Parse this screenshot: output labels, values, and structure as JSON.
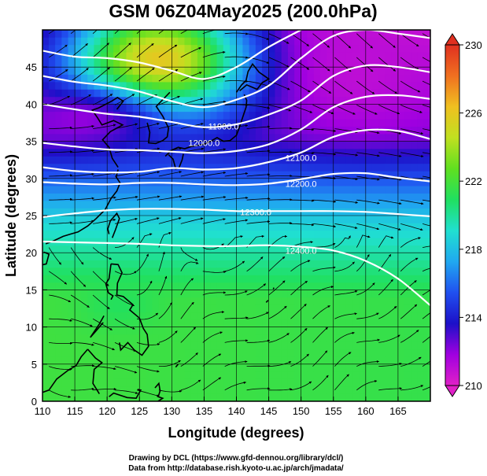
{
  "title": "GSM 06Z04May2025 (200.0hPa)",
  "xlabel": "Longitude (degrees)",
  "ylabel": "Latitude  (degrees)",
  "credits": {
    "line1": "Drawing by DCL (https://www.gfd-dennou.org/library/dcl/)",
    "line2": "Data from http://database.rish.kyoto-u.ac.jp/arch/jmadata/"
  },
  "colors": {
    "contour": "#ffffff",
    "coast": "#000000",
    "vector": "#000000",
    "frame": "#000000"
  },
  "colorbar": {
    "min": 210,
    "max": 230,
    "tick_labels": [
      "230",
      "226",
      "222",
      "218",
      "214",
      "210"
    ],
    "stops": [
      "#e020c8",
      "#a000e0",
      "#1c10c8",
      "#2050f0",
      "#20a8f0",
      "#20e0d0",
      "#20e060",
      "#60e020",
      "#c0e020",
      "#f0c020",
      "#f07020",
      "#e03020"
    ]
  },
  "chart_data": {
    "type": "heatmap",
    "xlim": [
      110,
      170
    ],
    "ylim": [
      0,
      50
    ],
    "x_ticks": [
      "110",
      "115",
      "120",
      "125",
      "130",
      "135",
      "140",
      "145",
      "150",
      "155",
      "160",
      "165"
    ],
    "y_ticks": [
      "0",
      "5",
      "10",
      "15",
      "20",
      "25",
      "30",
      "35",
      "40",
      "45"
    ],
    "grid": true,
    "field_description": "shaded temperature (K) with geopotential height contours and wind streamlines",
    "contours": [
      {
        "label": "11900.0",
        "value": 11900,
        "points": [
          [
            110,
            40
          ],
          [
            115,
            39.3
          ],
          [
            120,
            38.7
          ],
          [
            125,
            38.3
          ],
          [
            130,
            37.6
          ],
          [
            135,
            36.9
          ],
          [
            140,
            37.3
          ],
          [
            145,
            38.6
          ],
          [
            150,
            40.5
          ],
          [
            155,
            43.8
          ],
          [
            160,
            45.2
          ],
          [
            165,
            45.0
          ],
          [
            170,
            44.3
          ]
        ]
      },
      {
        "label": "12000.0",
        "value": 12000,
        "points": [
          [
            110,
            34.8
          ],
          [
            115,
            34.3
          ],
          [
            120,
            33.9
          ],
          [
            125,
            33.8
          ],
          [
            130,
            33.6
          ],
          [
            135,
            33.4
          ],
          [
            140,
            33.7
          ],
          [
            145,
            34.6
          ],
          [
            150,
            36.6
          ],
          [
            155,
            39.6
          ],
          [
            160,
            41.0
          ],
          [
            165,
            41.2
          ],
          [
            170,
            40.7
          ]
        ]
      },
      {
        "label": "12100.0",
        "value": 12100,
        "points": [
          [
            110,
            31.5
          ],
          [
            115,
            31.0
          ],
          [
            120,
            30.8
          ],
          [
            125,
            30.9
          ],
          [
            130,
            31.4
          ],
          [
            135,
            31.2
          ],
          [
            140,
            31.4
          ],
          [
            145,
            32.2
          ],
          [
            150,
            33.5
          ],
          [
            155,
            35.6
          ],
          [
            160,
            36.5
          ],
          [
            165,
            36.4
          ],
          [
            170,
            35.3
          ]
        ]
      },
      {
        "label": "12200.0",
        "value": 12200,
        "points": [
          [
            110,
            29.5
          ],
          [
            115,
            29.3
          ],
          [
            120,
            29.2
          ],
          [
            125,
            29.4
          ],
          [
            130,
            29.4
          ],
          [
            135,
            29.2
          ],
          [
            140,
            29.1
          ],
          [
            145,
            29.3
          ],
          [
            150,
            29.9
          ],
          [
            155,
            30.6
          ],
          [
            160,
            30.7
          ],
          [
            165,
            30.1
          ],
          [
            170,
            29.6
          ]
        ]
      },
      {
        "label": "12300.0",
        "value": 12300,
        "points": [
          [
            110,
            24.8
          ],
          [
            115,
            25.3
          ],
          [
            120,
            25.7
          ],
          [
            125,
            25.9
          ],
          [
            130,
            25.9
          ],
          [
            135,
            25.8
          ],
          [
            140,
            25.6
          ],
          [
            145,
            25.6
          ],
          [
            150,
            25.6
          ],
          [
            155,
            25.6
          ],
          [
            160,
            25.5
          ],
          [
            165,
            25.2
          ],
          [
            170,
            24.9
          ]
        ]
      },
      {
        "label": "12400.0",
        "value": 12400,
        "points": [
          [
            110,
            21.5
          ],
          [
            115,
            21.4
          ],
          [
            120,
            21.3
          ],
          [
            125,
            21.2
          ],
          [
            130,
            21.0
          ],
          [
            135,
            20.9
          ],
          [
            140,
            20.9
          ],
          [
            145,
            21.0
          ],
          [
            150,
            20.8
          ],
          [
            155,
            20.3
          ],
          [
            160,
            18.9
          ],
          [
            165,
            16.5
          ],
          [
            170,
            12.9
          ]
        ]
      },
      {
        "label": "",
        "value": 11800,
        "points": [
          [
            110,
            43.8
          ],
          [
            115,
            43.0
          ],
          [
            120,
            42.5
          ],
          [
            125,
            41.7
          ],
          [
            130,
            40.4
          ],
          [
            135,
            39.6
          ],
          [
            140,
            40.6
          ],
          [
            145,
            42.5
          ],
          [
            150,
            46.2
          ],
          [
            155,
            49.2
          ],
          [
            160,
            50
          ],
          [
            165,
            49.5
          ],
          [
            170,
            48.9
          ]
        ]
      },
      {
        "label": "",
        "value": 11700,
        "points": [
          [
            110,
            47.2
          ],
          [
            115,
            46.4
          ],
          [
            120,
            46.2
          ],
          [
            125,
            45.6
          ],
          [
            130,
            44.5
          ],
          [
            135,
            43.4
          ],
          [
            140,
            45.0
          ],
          [
            145,
            47.7
          ],
          [
            150,
            50
          ]
        ]
      }
    ],
    "contour_label_positions": [
      [
        138,
        37.0
      ],
      [
        135,
        34.8
      ],
      [
        150,
        32.8
      ],
      [
        150,
        29.3
      ],
      [
        143,
        25.5
      ],
      [
        150,
        20.3
      ]
    ],
    "warm_pools": [
      [
        128,
        46,
        14,
        8,
        226
      ],
      [
        122,
        13,
        6,
        3,
        221
      ]
    ],
    "cold_pools": [
      [
        159,
        44,
        10,
        7,
        211
      ],
      [
        116,
        38,
        12,
        4,
        212
      ]
    ]
  }
}
